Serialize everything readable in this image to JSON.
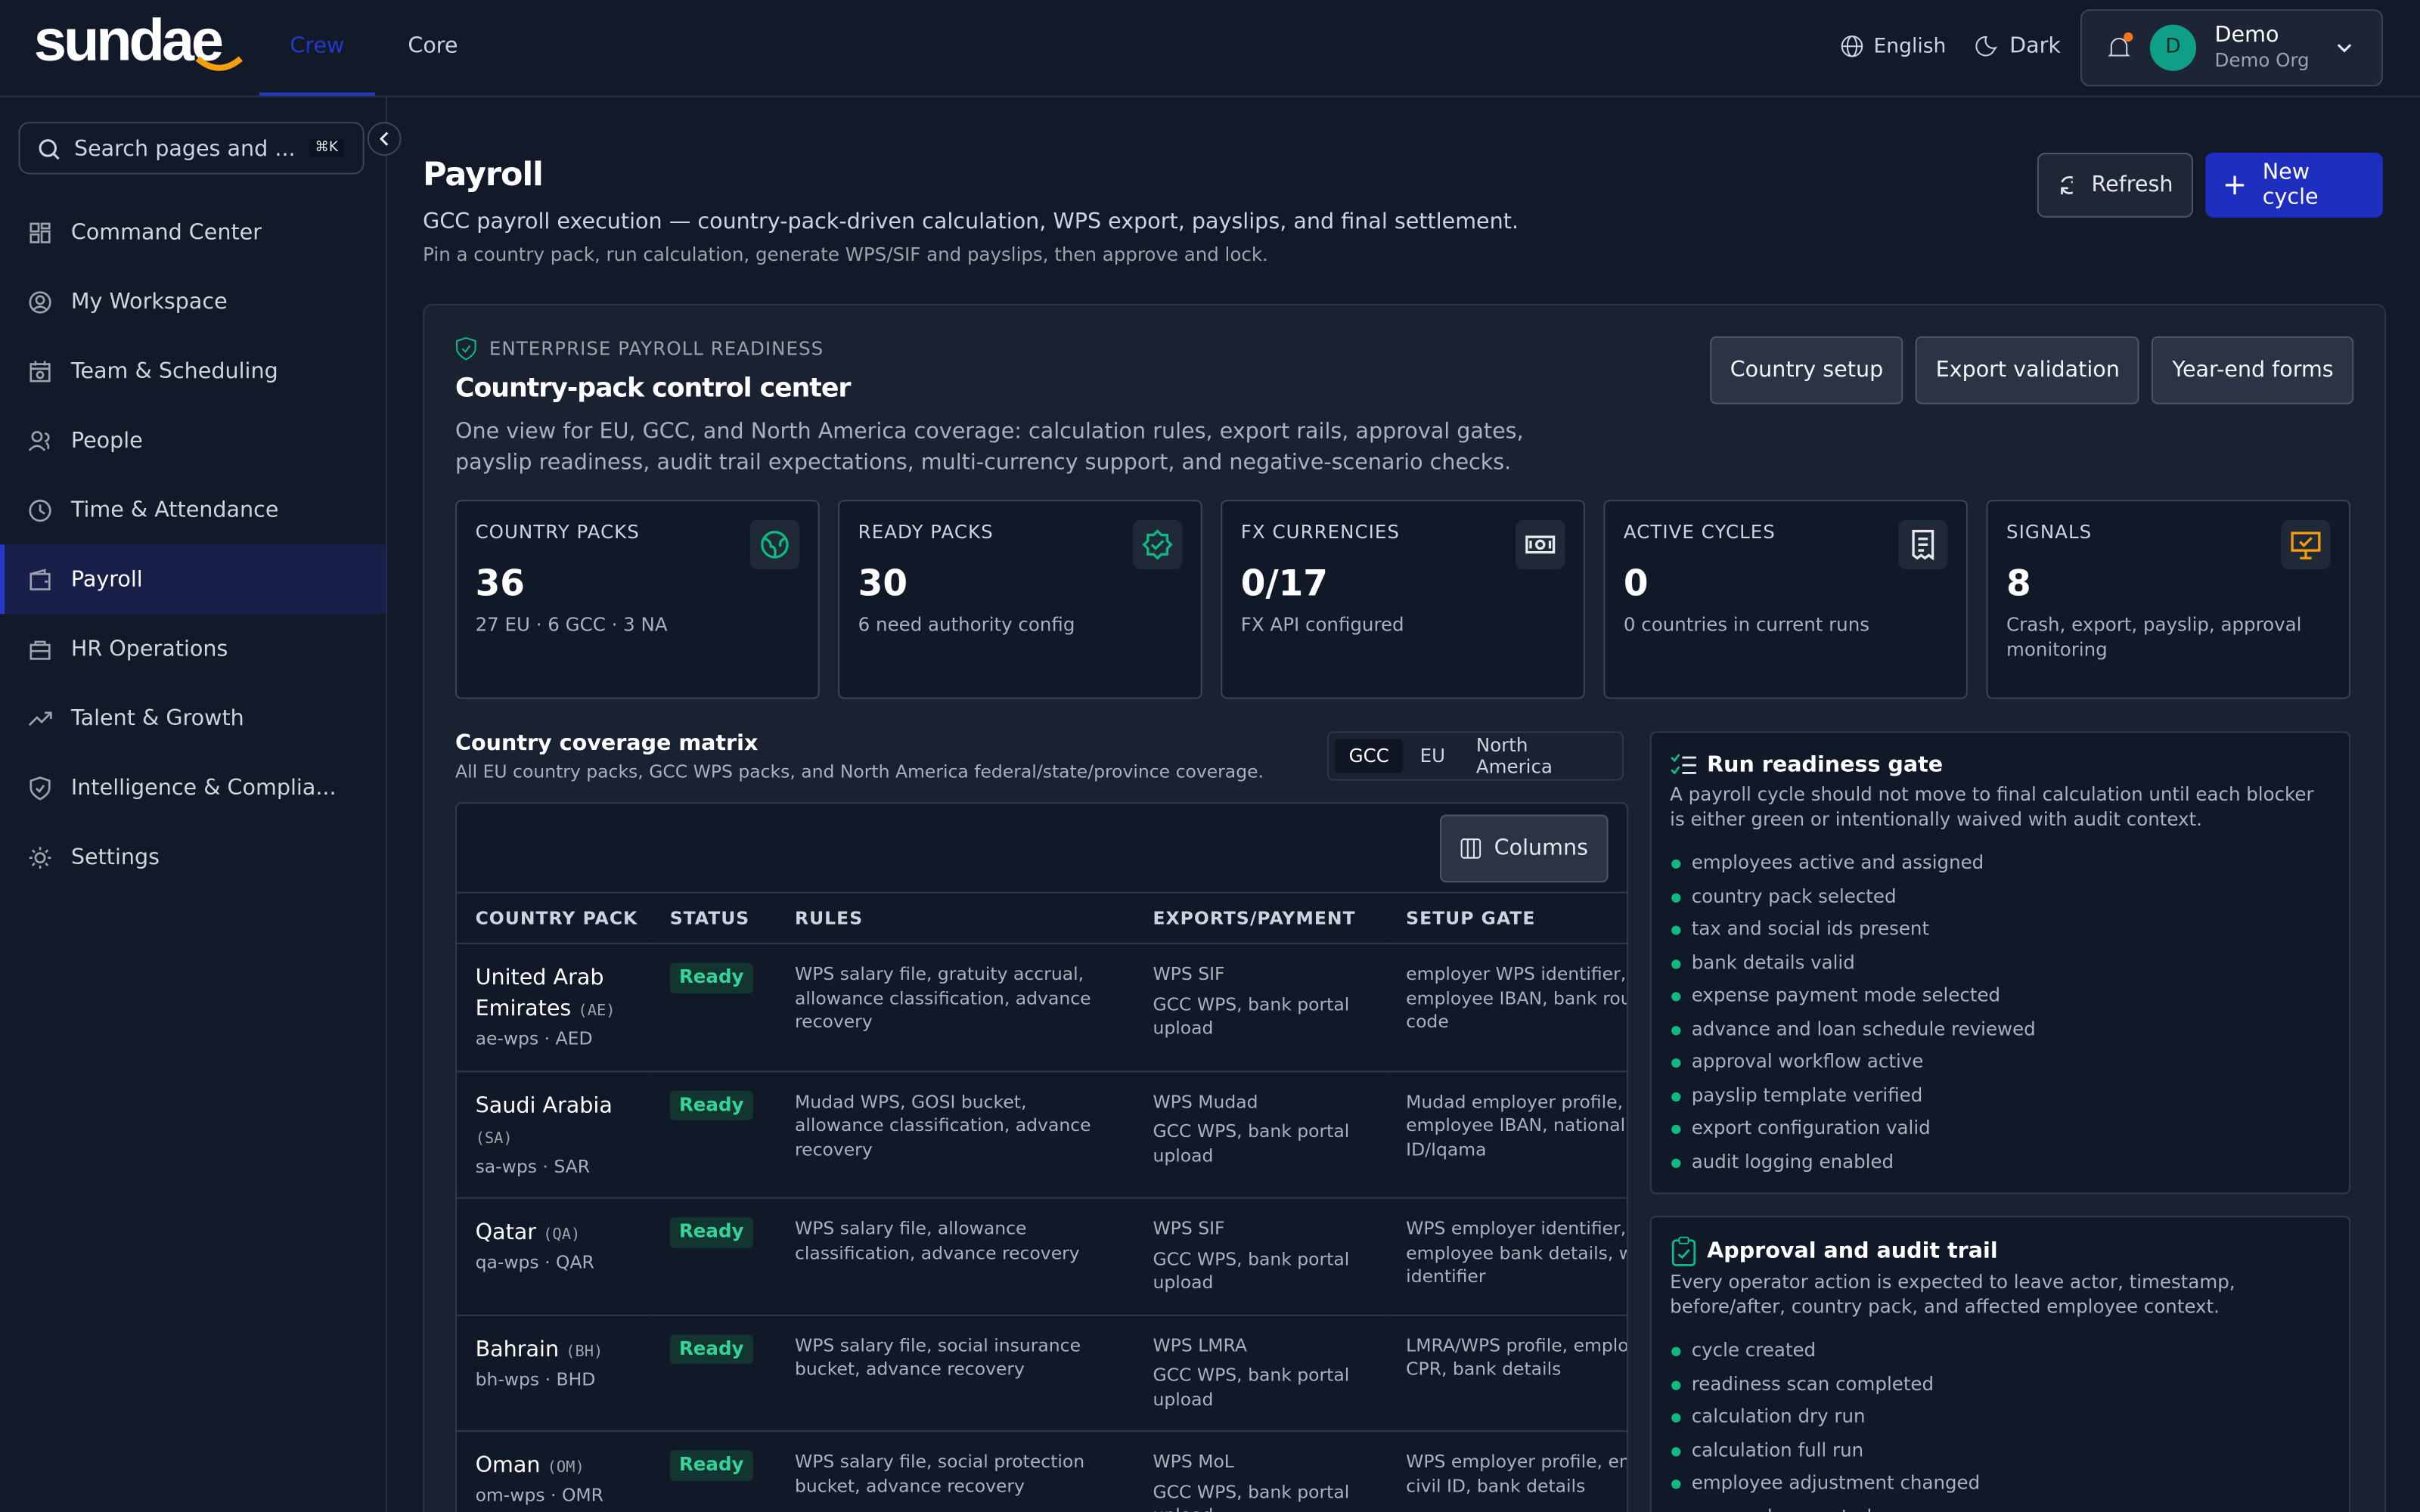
{
  "brand": "sundae",
  "topnav": [
    "Crew",
    "Core"
  ],
  "header": {
    "language": "English",
    "theme": "Dark",
    "avatar": "D",
    "user": "Demo",
    "org": "Demo Org"
  },
  "sidebar": {
    "search": "Search pages and ...",
    "shortcut": "⌘K",
    "items": [
      "Command Center",
      "My Workspace",
      "Team & Scheduling",
      "People",
      "Time & Attendance",
      "Payroll",
      "HR Operations",
      "Talent & Growth",
      "Intelligence & Complia...",
      "Settings"
    ]
  },
  "page": {
    "title": "Payroll",
    "subtitle": "GCC payroll execution — country-pack-driven calculation, WPS export, payslips, and final settlement.",
    "hint": "Pin a country pack, run calculation, generate WPS/SIF and payslips, then approve and lock.",
    "buttons": [
      "Refresh",
      "New cycle"
    ]
  },
  "readiness": {
    "eyebrow": "ENTERPRISE PAYROLL READINESS",
    "title": "Country-pack control center",
    "description": "One view for EU, GCC, and North America coverage: calculation rules, export rails, approval gates, payslip readiness, audit trail expectations, multi-currency support, and negative-scenario checks.",
    "buttons": [
      "Country setup",
      "Export validation",
      "Year-end forms"
    ],
    "stats": [
      {
        "label": "COUNTRY PACKS",
        "value": "36",
        "note": "27 EU · 6 GCC · 3 NA"
      },
      {
        "label": "READY PACKS",
        "value": "30",
        "note": "6 need authority config"
      },
      {
        "label": "FX CURRENCIES",
        "value": "0/17",
        "note": "FX API configured"
      },
      {
        "label": "ACTIVE CYCLES",
        "value": "0",
        "note": "0 countries in current runs"
      },
      {
        "label": "SIGNALS",
        "value": "8",
        "note": "Crash, export, payslip, approval monitoring"
      }
    ]
  },
  "matrix": {
    "title": "Country coverage matrix",
    "subtitle": "All EU country packs, GCC WPS packs, and North America federal/state/province coverage.",
    "tabs": [
      "GCC",
      "EU",
      "North America"
    ],
    "columns_button": "Columns",
    "headers": [
      "COUNTRY PACK",
      "STATUS",
      "RULES",
      "EXPORTS/PAYMENT",
      "SETUP GATE"
    ],
    "rows": [
      {
        "name": "United Arab Emirates",
        "code": "(AE)",
        "pack": "ae-wps · AED",
        "status": "Ready",
        "rules": "WPS salary file, gratuity accrual, allowance classification, advance recovery",
        "export": "WPS SIF",
        "payment": "GCC WPS, bank portal upload",
        "setup": "employer WPS identifier, employee IBAN, bank routing code"
      },
      {
        "name": "Saudi Arabia",
        "code": "(SA)",
        "pack": "sa-wps · SAR",
        "status": "Ready",
        "rules": "Mudad WPS, GOSI bucket, allowance classification, advance recovery",
        "export": "WPS Mudad",
        "payment": "GCC WPS, bank portal upload",
        "setup": "Mudad employer profile, employee IBAN, national ID/Iqama"
      },
      {
        "name": "Qatar",
        "code": "(QA)",
        "pack": "qa-wps · QAR",
        "status": "Ready",
        "rules": "WPS salary file, allowance classification, advance recovery",
        "export": "WPS SIF",
        "payment": "GCC WPS, bank portal upload",
        "setup": "WPS employer identifier, employee bank details, worker identifier"
      },
      {
        "name": "Bahrain",
        "code": "(BH)",
        "pack": "bh-wps · BHD",
        "status": "Ready",
        "rules": "WPS salary file, social insurance bucket, advance recovery",
        "export": "WPS LMRA",
        "payment": "GCC WPS, bank portal upload",
        "setup": "LMRA/WPS profile, employee CPR, bank details"
      },
      {
        "name": "Oman",
        "code": "(OM)",
        "pack": "om-wps · OMR",
        "status": "Ready",
        "rules": "WPS salary file, social protection bucket, advance recovery",
        "export": "WPS MoL",
        "payment": "GCC WPS, bank portal upload",
        "setup": "WPS employer profile, employee civil ID, bank details"
      }
    ]
  },
  "gate": {
    "title": "Run readiness gate",
    "description": "A payroll cycle should not move to final calculation until each blocker is either green or intentionally waived with audit context.",
    "items": [
      "employees active and assigned",
      "country pack selected",
      "tax and social ids present",
      "bank details valid",
      "expense payment mode selected",
      "advance and loan schedule reviewed",
      "approval workflow active",
      "payslip template verified",
      "export configuration valid",
      "audit logging enabled"
    ]
  },
  "audit": {
    "title": "Approval and audit trail",
    "description": "Every operator action is expected to leave actor, timestamp, before/after, country pack, and affected employee context.",
    "items": [
      "cycle created",
      "readiness scan completed",
      "calculation dry run",
      "calculation full run",
      "employee adjustment changed",
      "approval requested"
    ]
  }
}
